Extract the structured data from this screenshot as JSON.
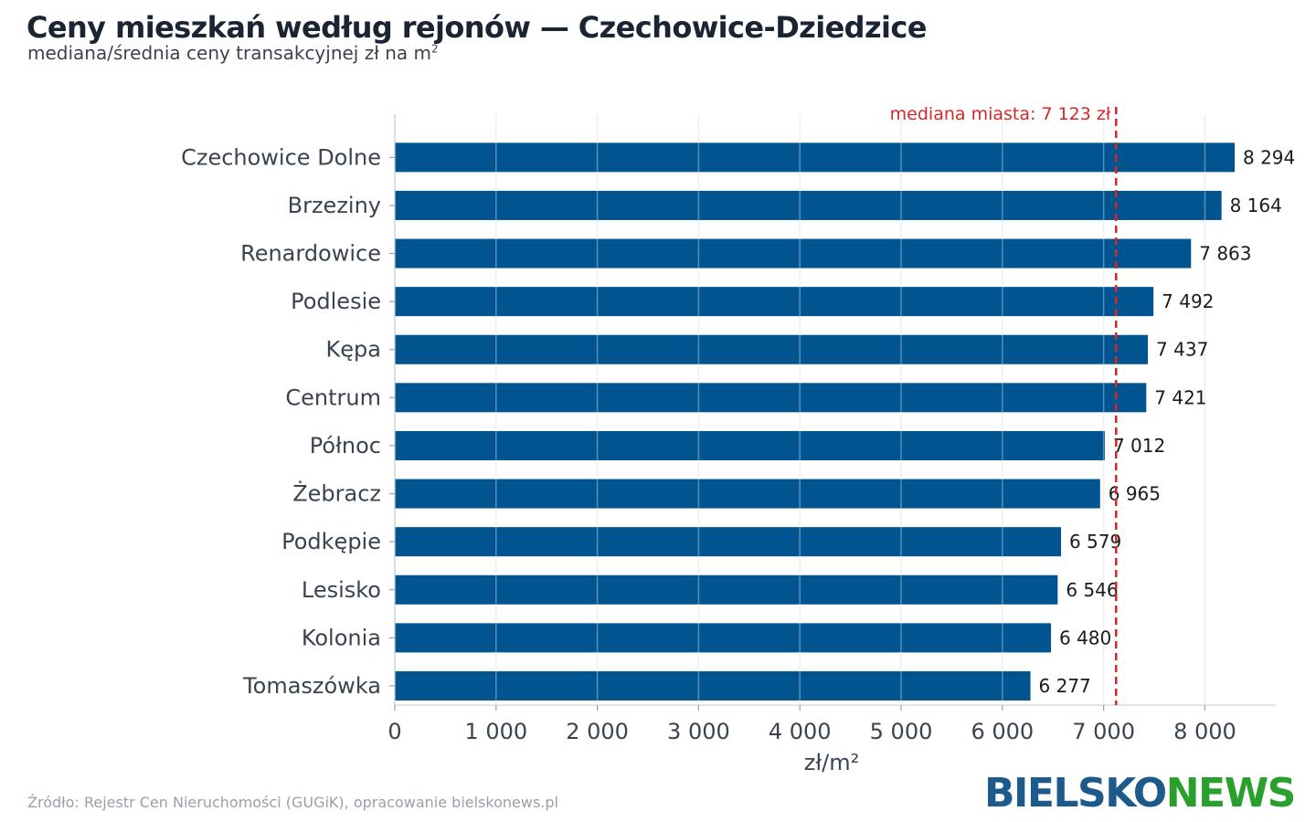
{
  "title": "Ceny mieszkań według rejonów — Czechowice-Dziedzice",
  "subtitle": "mediana/średnia ceny transakcyjnej zł na m",
  "subtitle_sup": "2",
  "source": "Źródło: Rejestr Cen Nieruchomości (GUGiK), opracowanie bielskonews.pl",
  "logo": {
    "part1": "BIELSKO",
    "part2": "NEWS"
  },
  "colors": {
    "bar": "#00548f",
    "reference": "#d62728",
    "grid": "#e6e6e6"
  },
  "chart_data": {
    "type": "bar",
    "orientation": "horizontal",
    "categories": [
      "Czechowice Dolne",
      "Brzeziny",
      "Renardowice",
      "Podlesie",
      "Kępa",
      "Centrum",
      "Północ",
      "Żebracz",
      "Podkępie",
      "Lesisko",
      "Kolonia",
      "Tomaszówka"
    ],
    "values": [
      8294,
      8164,
      7863,
      7492,
      7437,
      7421,
      7012,
      6965,
      6579,
      6546,
      6480,
      6277
    ],
    "value_labels": [
      "8 294",
      "8 164",
      "7 863",
      "7 492",
      "7 437",
      "7 421",
      "7 012",
      "6 965",
      "6 579",
      "6 546",
      "6 480",
      "6 277"
    ],
    "xlabel": "zł/m²",
    "xlim": [
      0,
      8700
    ],
    "xticks": [
      0,
      1000,
      2000,
      3000,
      4000,
      5000,
      6000,
      7000,
      8000
    ],
    "xtick_labels": [
      "0",
      "1 000",
      "2 000",
      "3 000",
      "4 000",
      "5 000",
      "6 000",
      "7 000",
      "8 000"
    ],
    "grid": true,
    "reference_line": {
      "value": 7123,
      "label": "mediana miasta: 7 123 zł"
    }
  }
}
